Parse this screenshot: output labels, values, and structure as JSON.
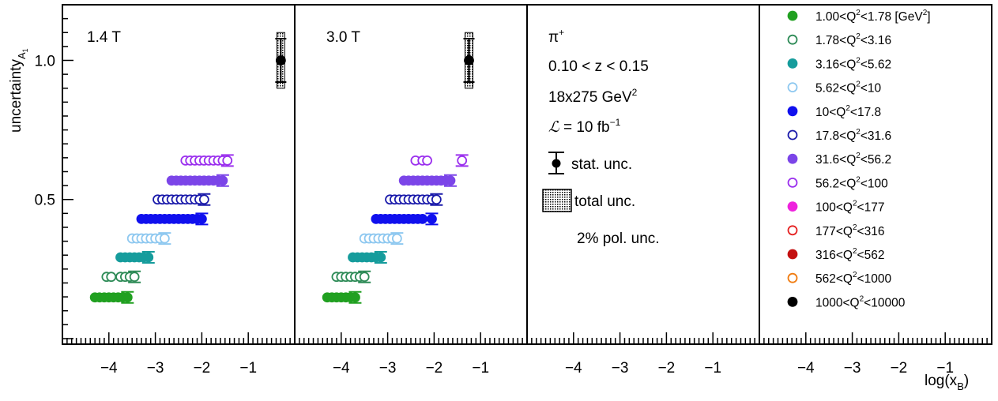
{
  "chart_data": {
    "type": "scatter",
    "ylabel": "uncertainty",
    "ylabel_subscript": "A",
    "ylabel_subsub": "1",
    "xlabel": "log(x",
    "xlabel_subscript": "B",
    "xlabel_close": ")",
    "ylim": [
      -0.02,
      1.2
    ],
    "xlim": [
      -5.0,
      0.0
    ],
    "y_ticks": [
      {
        "v": 0.5,
        "label": "0.5"
      },
      {
        "v": 1.0,
        "label": "1.0"
      }
    ],
    "x_ticks": [
      {
        "v": -4,
        "label": "−4"
      },
      {
        "v": -3,
        "label": "−3"
      },
      {
        "v": -2,
        "label": "−2"
      },
      {
        "v": -1,
        "label": "−1"
      }
    ],
    "panels": [
      {
        "label": "1.4 T"
      },
      {
        "label": "3.0 T"
      }
    ],
    "info": {
      "particle": "π",
      "particle_sup": "+",
      "z_range": "0.10 < z < 0.15",
      "energy": "18x275 GeV",
      "energy_sup": "2",
      "lumi_symbol": "ℒ",
      "lumi_text": " = 10 fb",
      "lumi_sup": "−1",
      "stat_label": "stat. unc.",
      "total_label": "total unc.",
      "pol_label": "2% pol. unc."
    },
    "legend": [
      {
        "pre": "1.00<Q",
        "sup": "2",
        "post": "<1.78 [GeV",
        "sup2": "2",
        "post2": "]",
        "color": "#21a021",
        "filled": true
      },
      {
        "pre": "1.78<Q",
        "sup": "2",
        "post": "<3.16",
        "color": "#2e8b57",
        "filled": false
      },
      {
        "pre": "3.16<Q",
        "sup": "2",
        "post": "<5.62",
        "color": "#169c9c",
        "filled": true
      },
      {
        "pre": "5.62<Q",
        "sup": "2",
        "post": "<10",
        "color": "#8ec8f0",
        "filled": false
      },
      {
        "pre": "10<Q",
        "sup": "2",
        "post": "<17.8",
        "color": "#1010ee",
        "filled": true
      },
      {
        "pre": "17.8<Q",
        "sup": "2",
        "post": "<31.6",
        "color": "#1a1aaa",
        "filled": false
      },
      {
        "pre": "31.6<Q",
        "sup": "2",
        "post": "<56.2",
        "color": "#7b45e8",
        "filled": true
      },
      {
        "pre": "56.2<Q",
        "sup": "2",
        "post": "<100",
        "color": "#9b30ee",
        "filled": false
      },
      {
        "pre": "100<Q",
        "sup": "2",
        "post": "<177",
        "color": "#ee22dd",
        "filled": true
      },
      {
        "pre": "177<Q",
        "sup": "2",
        "post": "<316",
        "color": "#e52222",
        "filled": false
      },
      {
        "pre": "316<Q",
        "sup": "2",
        "post": "<562",
        "color": "#c41010",
        "filled": true
      },
      {
        "pre": "562<Q",
        "sup": "2",
        "post": "<1000",
        "color": "#f07b10",
        "filled": false
      },
      {
        "pre": "1000<Q",
        "sup": "2",
        "post": "<10000",
        "color": "#000000",
        "filled": true
      }
    ],
    "series": [
      {
        "y": 0.148,
        "panel1_x": [
          -4.3,
          -4.2,
          -4.1,
          -4.0,
          -3.9,
          -3.8,
          -3.7,
          -3.6
        ],
        "panel2_x": [
          -4.3,
          -4.2,
          -4.1,
          -4.0,
          -3.9,
          -3.8,
          -3.7
        ]
      },
      {
        "y": 0.222,
        "panel1_x": [
          -4.05,
          -3.95,
          -3.75,
          -3.65,
          -3.55,
          -3.45
        ],
        "panel2_x": [
          -4.1,
          -4.0,
          -3.9,
          -3.8,
          -3.7,
          -3.6,
          -3.5
        ]
      },
      {
        "y": 0.292,
        "panel1_x": [
          -3.75,
          -3.65,
          -3.55,
          -3.45,
          -3.35,
          -3.25,
          -3.15
        ],
        "panel2_x": [
          -3.75,
          -3.65,
          -3.55,
          -3.45,
          -3.35,
          -3.25,
          -3.15
        ]
      },
      {
        "y": 0.36,
        "panel1_x": [
          -3.5,
          -3.4,
          -3.3,
          -3.2,
          -3.1,
          -3.0,
          -2.9,
          -2.8
        ],
        "panel2_x": [
          -3.5,
          -3.4,
          -3.3,
          -3.2,
          -3.1,
          -3.0,
          -2.9,
          -2.8
        ]
      },
      {
        "y": 0.43,
        "panel1_x": [
          -3.3,
          -3.2,
          -3.1,
          -3.0,
          -2.9,
          -2.8,
          -2.7,
          -2.6,
          -2.5,
          -2.4,
          -2.3,
          -2.2,
          -2.1,
          -2.0
        ],
        "panel2_x": [
          -3.25,
          -3.15,
          -3.05,
          -2.95,
          -2.85,
          -2.75,
          -2.65,
          -2.55,
          -2.45,
          -2.35,
          -2.25,
          -2.05
        ]
      },
      {
        "y": 0.5,
        "panel1_x": [
          -2.95,
          -2.85,
          -2.75,
          -2.65,
          -2.55,
          -2.45,
          -2.35,
          -2.25,
          -2.15,
          -2.05,
          -1.95
        ],
        "panel2_x": [
          -2.95,
          -2.85,
          -2.75,
          -2.65,
          -2.55,
          -2.45,
          -2.35,
          -2.25,
          -2.15,
          -2.05,
          -1.95
        ]
      },
      {
        "y": 0.568,
        "panel1_x": [
          -2.65,
          -2.55,
          -2.45,
          -2.35,
          -2.25,
          -2.15,
          -2.05,
          -1.95,
          -1.85,
          -1.75,
          -1.65,
          -1.55
        ],
        "panel2_x": [
          -2.65,
          -2.55,
          -2.45,
          -2.35,
          -2.25,
          -2.15,
          -2.05,
          -1.95,
          -1.85,
          -1.75,
          -1.65
        ]
      },
      {
        "y": 0.64,
        "panel1_x": [
          -2.35,
          -2.25,
          -2.15,
          -2.05,
          -1.95,
          -1.85,
          -1.75,
          -1.65,
          -1.55,
          -1.45
        ],
        "panel2_x": [
          -2.4,
          -2.25,
          -2.15,
          -1.4
        ]
      },
      {
        "y": 1.0,
        "panel1_x": [
          -0.3
        ],
        "panel2_x": [
          -1.25
        ],
        "black": true
      }
    ]
  }
}
